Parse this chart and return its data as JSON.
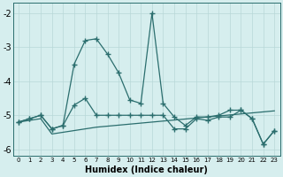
{
  "xlabel": "Humidex (Indice chaleur)",
  "x": [
    0,
    1,
    2,
    3,
    4,
    5,
    6,
    7,
    8,
    9,
    10,
    11,
    12,
    13,
    14,
    15,
    16,
    17,
    18,
    19,
    20,
    21,
    22,
    23
  ],
  "line1": [
    -5.2,
    -5.1,
    -5.0,
    -5.4,
    -5.3,
    -3.5,
    -2.8,
    -2.75,
    -3.2,
    -3.75,
    -4.55,
    -4.65,
    -2.0,
    -4.65,
    -5.05,
    -5.3,
    -5.05,
    -5.05,
    -5.0,
    -4.85,
    -4.85,
    -5.1,
    -5.85,
    -5.45
  ],
  "line2": [
    -5.2,
    -5.1,
    -5.0,
    -5.4,
    -5.3,
    -4.7,
    -4.5,
    -5.0,
    -5.0,
    -5.0,
    -5.0,
    -5.0,
    -5.0,
    -5.0,
    -5.4,
    -5.4,
    -5.1,
    -5.15,
    -5.05,
    -5.05,
    -4.85,
    -5.1,
    -5.85,
    -5.45
  ],
  "line3": [
    -5.2,
    -5.15,
    -5.1,
    -5.55,
    -5.5,
    -5.45,
    -5.4,
    -5.35,
    -5.32,
    -5.29,
    -5.26,
    -5.23,
    -5.2,
    -5.17,
    -5.14,
    -5.11,
    -5.08,
    -5.05,
    -5.02,
    -4.99,
    -4.96,
    -4.93,
    -4.9,
    -4.87
  ],
  "ylim": [
    -6.2,
    -1.7
  ],
  "yticks": [
    -6,
    -5,
    -4,
    -3,
    -2
  ],
  "bg_color": "#d6eeee",
  "line_color": "#2b6e6e",
  "grid_color": "#b8d8d8"
}
